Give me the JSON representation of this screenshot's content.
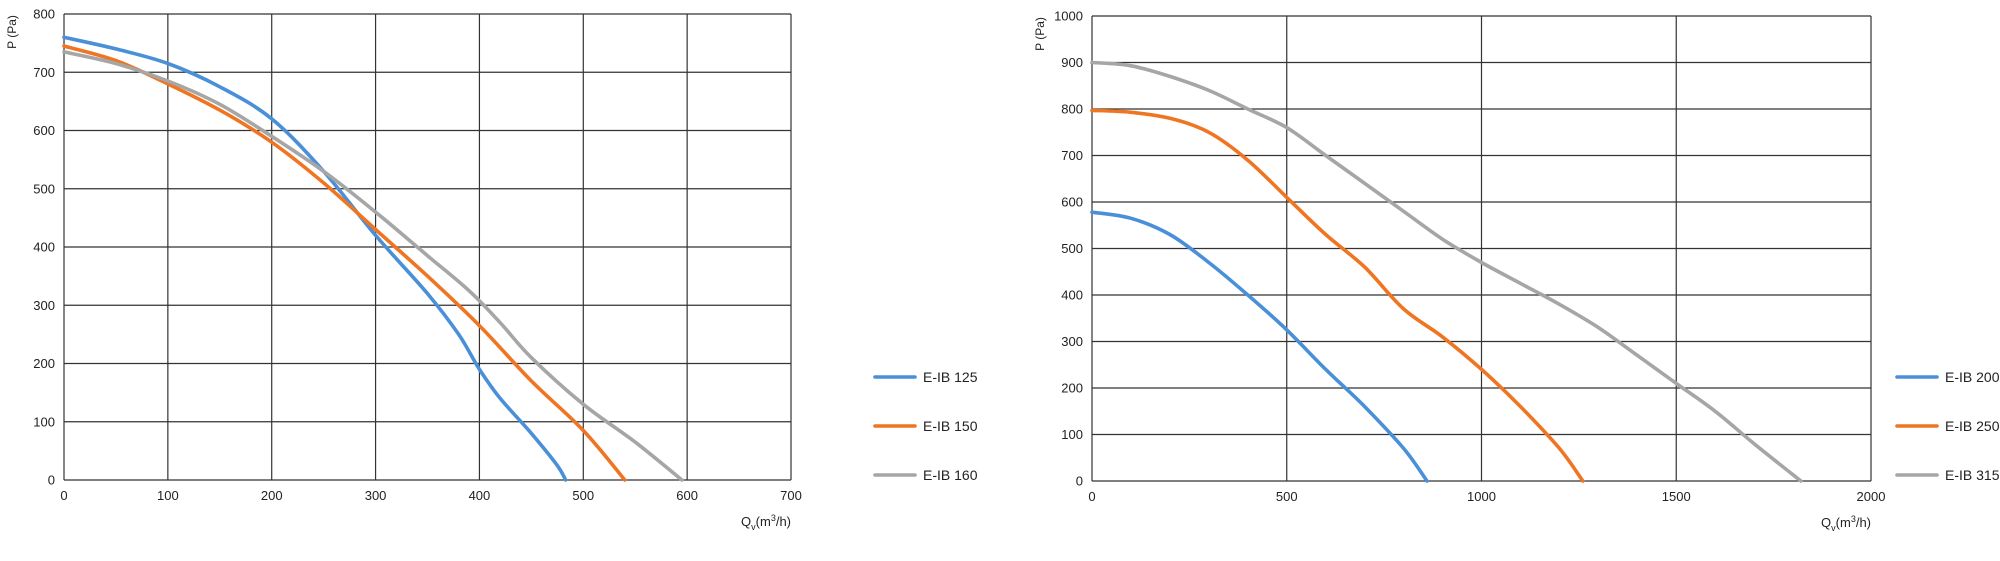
{
  "colors": {
    "blue": "#4a90d9",
    "orange": "#ef7522",
    "gray": "#a6a6a6",
    "grid": "#333333"
  },
  "chart_data": [
    {
      "type": "line",
      "id": "left",
      "xlabel": "Qv(m³/h)",
      "xlabel_main": "Q",
      "xlabel_sub": "v",
      "xlabel_rest": "(m",
      "xlabel_sup": "3",
      "xlabel_end": "/h)",
      "ylabel": "P (Pa)",
      "xlim": [
        0,
        700
      ],
      "ylim": [
        0,
        800
      ],
      "xticks": [
        0,
        100,
        200,
        300,
        400,
        500,
        600,
        700
      ],
      "yticks": [
        0,
        100,
        200,
        300,
        400,
        500,
        600,
        700,
        800
      ],
      "series": [
        {
          "name": "E-IB 125",
          "color": "blue",
          "x": [
            0,
            50,
            100,
            150,
            200,
            250,
            300,
            350,
            380,
            400,
            420,
            450,
            475,
            483
          ],
          "y": [
            760,
            740,
            715,
            675,
            620,
            530,
            420,
            320,
            250,
            190,
            140,
            80,
            25,
            0
          ]
        },
        {
          "name": "E-IB 150",
          "color": "orange",
          "x": [
            0,
            50,
            100,
            150,
            200,
            250,
            300,
            350,
            400,
            450,
            500,
            540
          ],
          "y": [
            745,
            720,
            680,
            635,
            580,
            510,
            430,
            350,
            265,
            170,
            85,
            0
          ]
        },
        {
          "name": "E-IB 160",
          "color": "gray",
          "x": [
            0,
            50,
            100,
            150,
            200,
            250,
            300,
            350,
            390,
            420,
            450,
            500,
            550,
            595
          ],
          "y": [
            735,
            715,
            685,
            645,
            590,
            530,
            460,
            385,
            325,
            270,
            210,
            130,
            65,
            0
          ]
        }
      ]
    },
    {
      "type": "line",
      "id": "right",
      "xlabel": "Qv(m³/h)",
      "xlabel_main": "Q",
      "xlabel_sub": "v",
      "xlabel_rest": "(m",
      "xlabel_sup": "3",
      "xlabel_end": "/h)",
      "ylabel": "P (Pa)",
      "xlim": [
        0,
        2000
      ],
      "ylim": [
        0,
        1000
      ],
      "xticks": [
        0,
        500,
        1000,
        1500,
        2000
      ],
      "yticks": [
        0,
        100,
        200,
        300,
        400,
        500,
        600,
        700,
        800,
        900,
        1000
      ],
      "series": [
        {
          "name": "E-IB 200",
          "color": "blue",
          "x": [
            0,
            100,
            200,
            300,
            400,
            500,
            600,
            700,
            800,
            860
          ],
          "y": [
            578,
            565,
            530,
            470,
            400,
            325,
            240,
            160,
            70,
            0
          ]
        },
        {
          "name": "E-IB 250",
          "color": "orange",
          "x": [
            0,
            100,
            200,
            300,
            400,
            500,
            600,
            700,
            800,
            900,
            1000,
            1100,
            1200,
            1260
          ],
          "y": [
            797,
            793,
            780,
            750,
            690,
            610,
            530,
            460,
            370,
            310,
            240,
            160,
            70,
            0
          ]
        },
        {
          "name": "E-IB 315",
          "color": "gray",
          "x": [
            0,
            100,
            200,
            300,
            400,
            500,
            600,
            700,
            800,
            900,
            1000,
            1100,
            1200,
            1300,
            1400,
            1500,
            1600,
            1700,
            1820
          ],
          "y": [
            900,
            893,
            870,
            840,
            800,
            760,
            700,
            640,
            580,
            520,
            470,
            425,
            380,
            330,
            270,
            210,
            150,
            80,
            0
          ]
        }
      ]
    }
  ]
}
